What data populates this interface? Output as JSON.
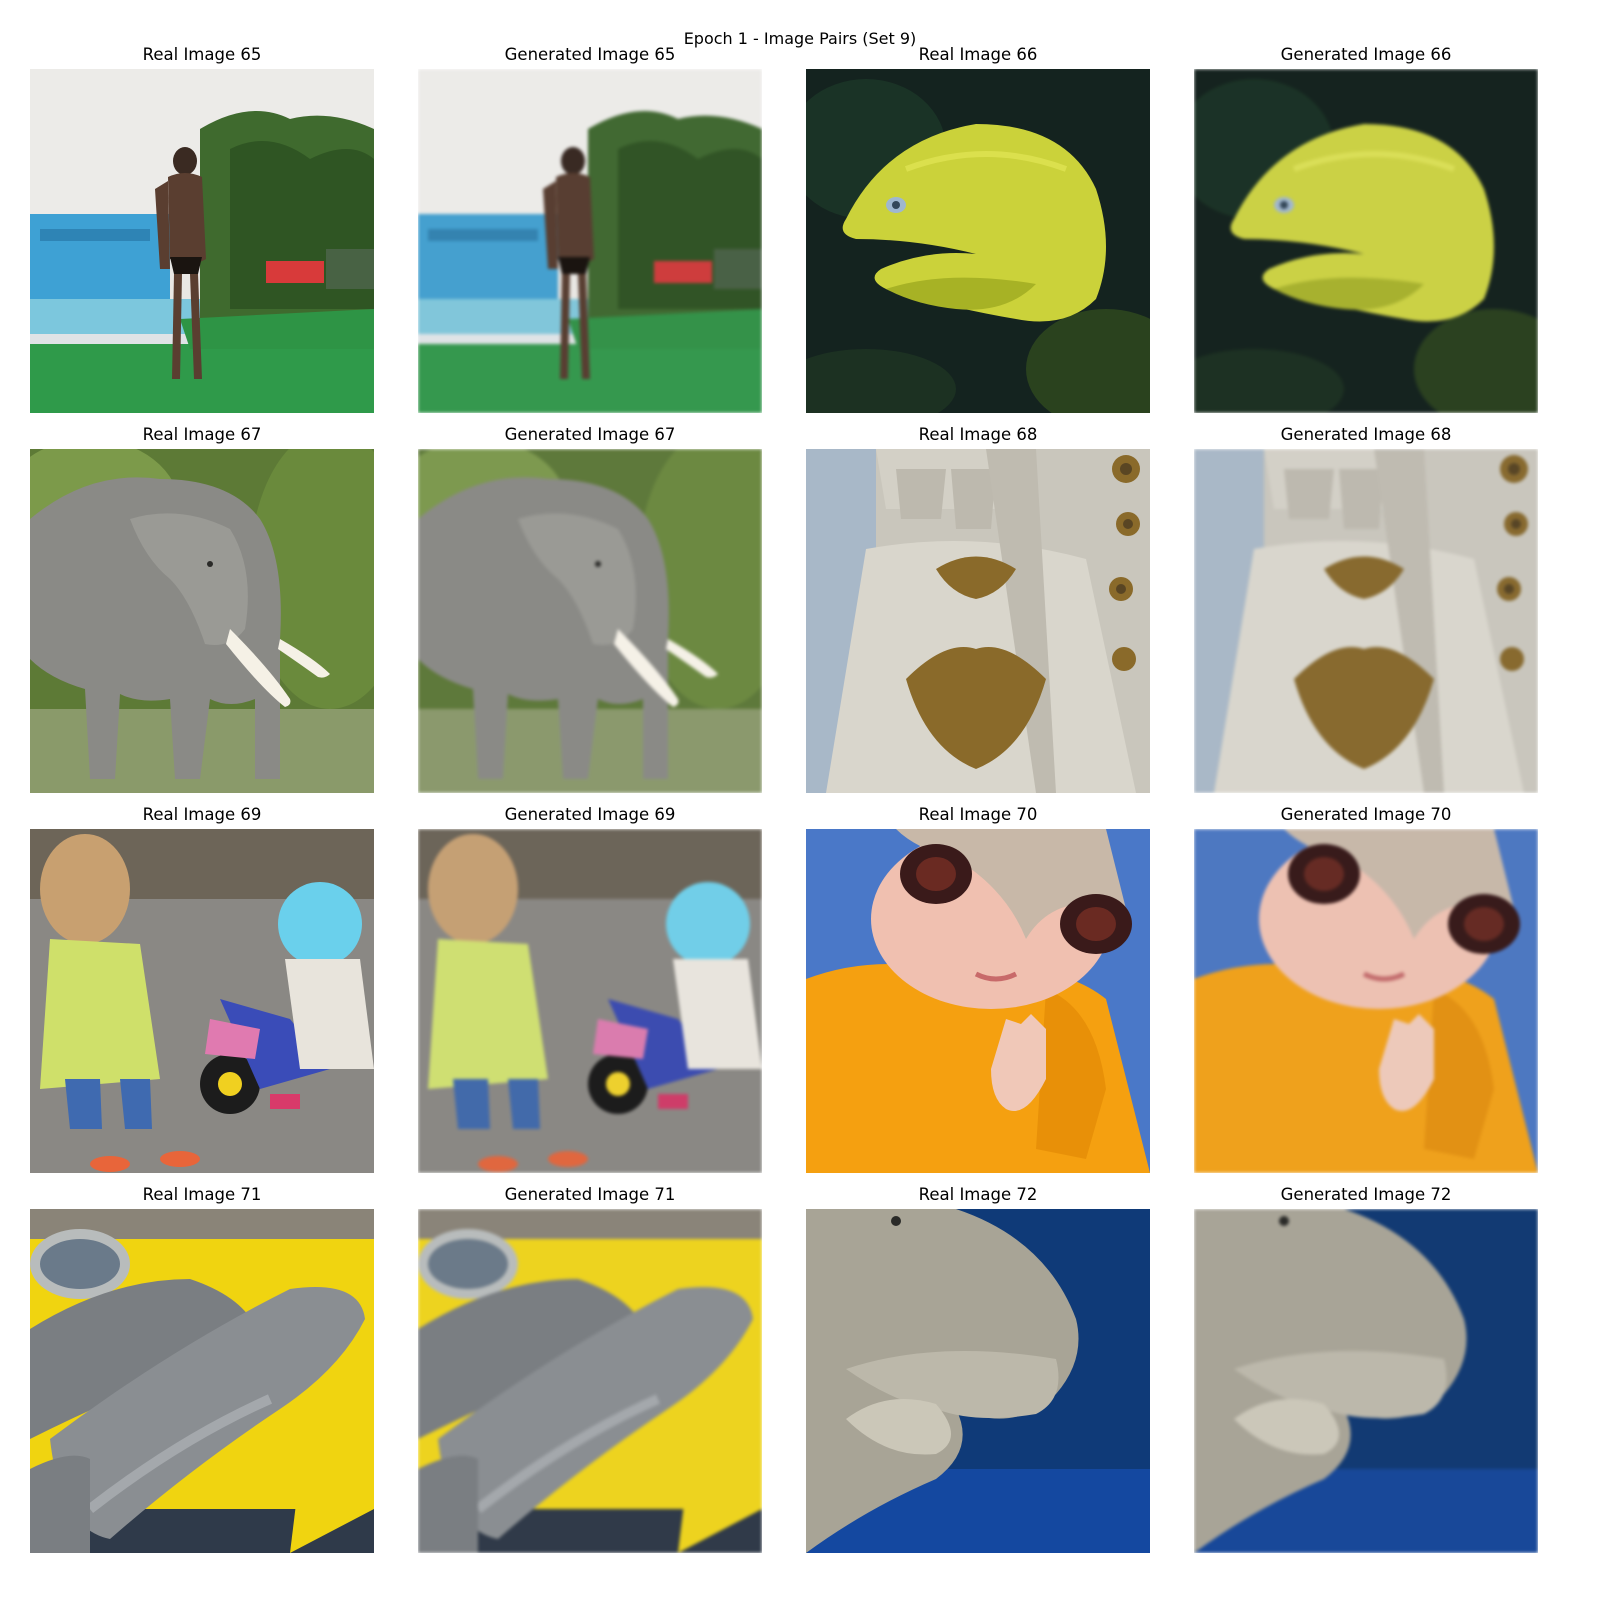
{
  "figure": {
    "title": "Epoch 1 - Image Pairs (Set 9)"
  },
  "panels": [
    {
      "title": "Real Image 65",
      "kind": "real",
      "subject": "pool-man"
    },
    {
      "title": "Generated Image 65",
      "kind": "generated",
      "subject": "pool-man"
    },
    {
      "title": "Real Image 66",
      "kind": "real",
      "subject": "moray-eel"
    },
    {
      "title": "Generated Image 66",
      "kind": "generated",
      "subject": "moray-eel"
    },
    {
      "title": "Real Image 67",
      "kind": "real",
      "subject": "elephant"
    },
    {
      "title": "Generated Image 67",
      "kind": "generated",
      "subject": "elephant"
    },
    {
      "title": "Real Image 68",
      "kind": "real",
      "subject": "embroidered-garment"
    },
    {
      "title": "Generated Image 68",
      "kind": "generated",
      "subject": "embroidered-garment"
    },
    {
      "title": "Real Image 69",
      "kind": "real",
      "subject": "children-tricycle"
    },
    {
      "title": "Generated Image 69",
      "kind": "generated",
      "subject": "children-tricycle"
    },
    {
      "title": "Real Image 70",
      "kind": "real",
      "subject": "doll-yellow-hoodie"
    },
    {
      "title": "Generated Image 70",
      "kind": "generated",
      "subject": "doll-yellow-hoodie"
    },
    {
      "title": "Real Image 71",
      "kind": "real",
      "subject": "fish-on-yellow"
    },
    {
      "title": "Generated Image 71",
      "kind": "generated",
      "subject": "fish-on-yellow"
    },
    {
      "title": "Real Image 72",
      "kind": "real",
      "subject": "dugong-underwater"
    },
    {
      "title": "Generated Image 72",
      "kind": "generated",
      "subject": "dugong-underwater"
    }
  ],
  "colors": {
    "background": "#ffffff",
    "text": "#000000"
  }
}
